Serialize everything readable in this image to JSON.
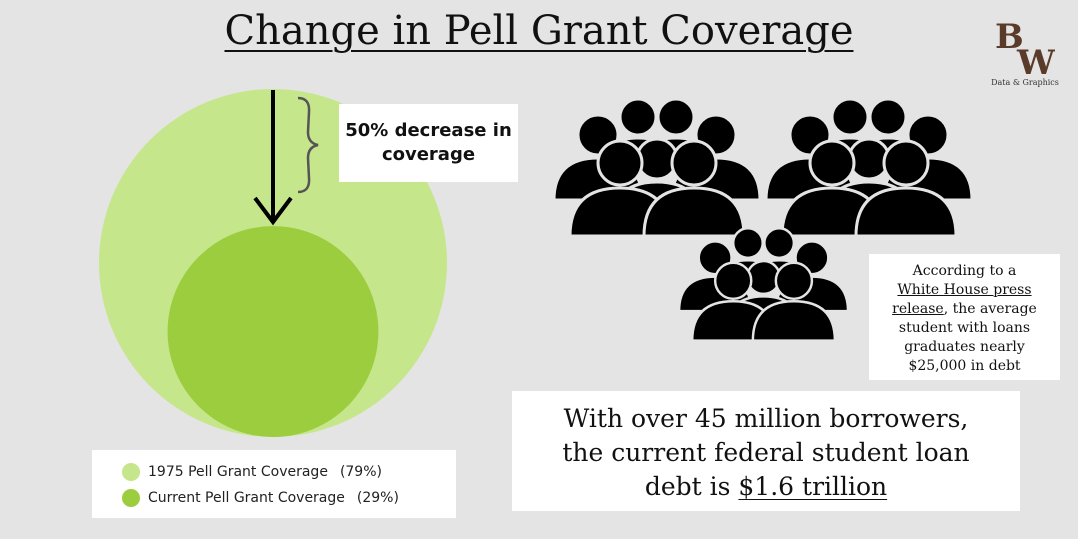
{
  "title": "Change in Pell Grant Coverage",
  "logo": {
    "mark": "BW",
    "subtitle": "Data & Graphics"
  },
  "chart_data": {
    "type": "area",
    "series": [
      {
        "name": "1975 Pell Grant Coverage",
        "value": 79,
        "value_label": "(79%)",
        "color": "#c6e68c"
      },
      {
        "name": "Current Pell Grant Coverage",
        "value": 29,
        "value_label": "(29%)",
        "color": "#9ccd3f"
      }
    ],
    "annotation": "50% decrease in coverage",
    "legend_position": "bottom"
  },
  "callout": {
    "line1": "50% decrease in",
    "line2": "coverage"
  },
  "info_box": {
    "line1": "According to a",
    "link_line1": "White House press",
    "link_line2": "release",
    "line2_rest": ", the average",
    "line3": "student with loans",
    "line4": "graduates nearly",
    "line5": "$25,000 in debt"
  },
  "stat_box": {
    "line1": "With over 45 million borrowers,",
    "line2": "the current federal student loan",
    "line3_prefix": "debt is ",
    "line3_amount": "$1.6 trillion"
  },
  "icons": {
    "people": "people-group-icon",
    "arrow": "down-arrow-icon",
    "brace": "curly-brace-icon"
  },
  "colors": {
    "background": "#e4e4e4",
    "text": "#111111"
  }
}
